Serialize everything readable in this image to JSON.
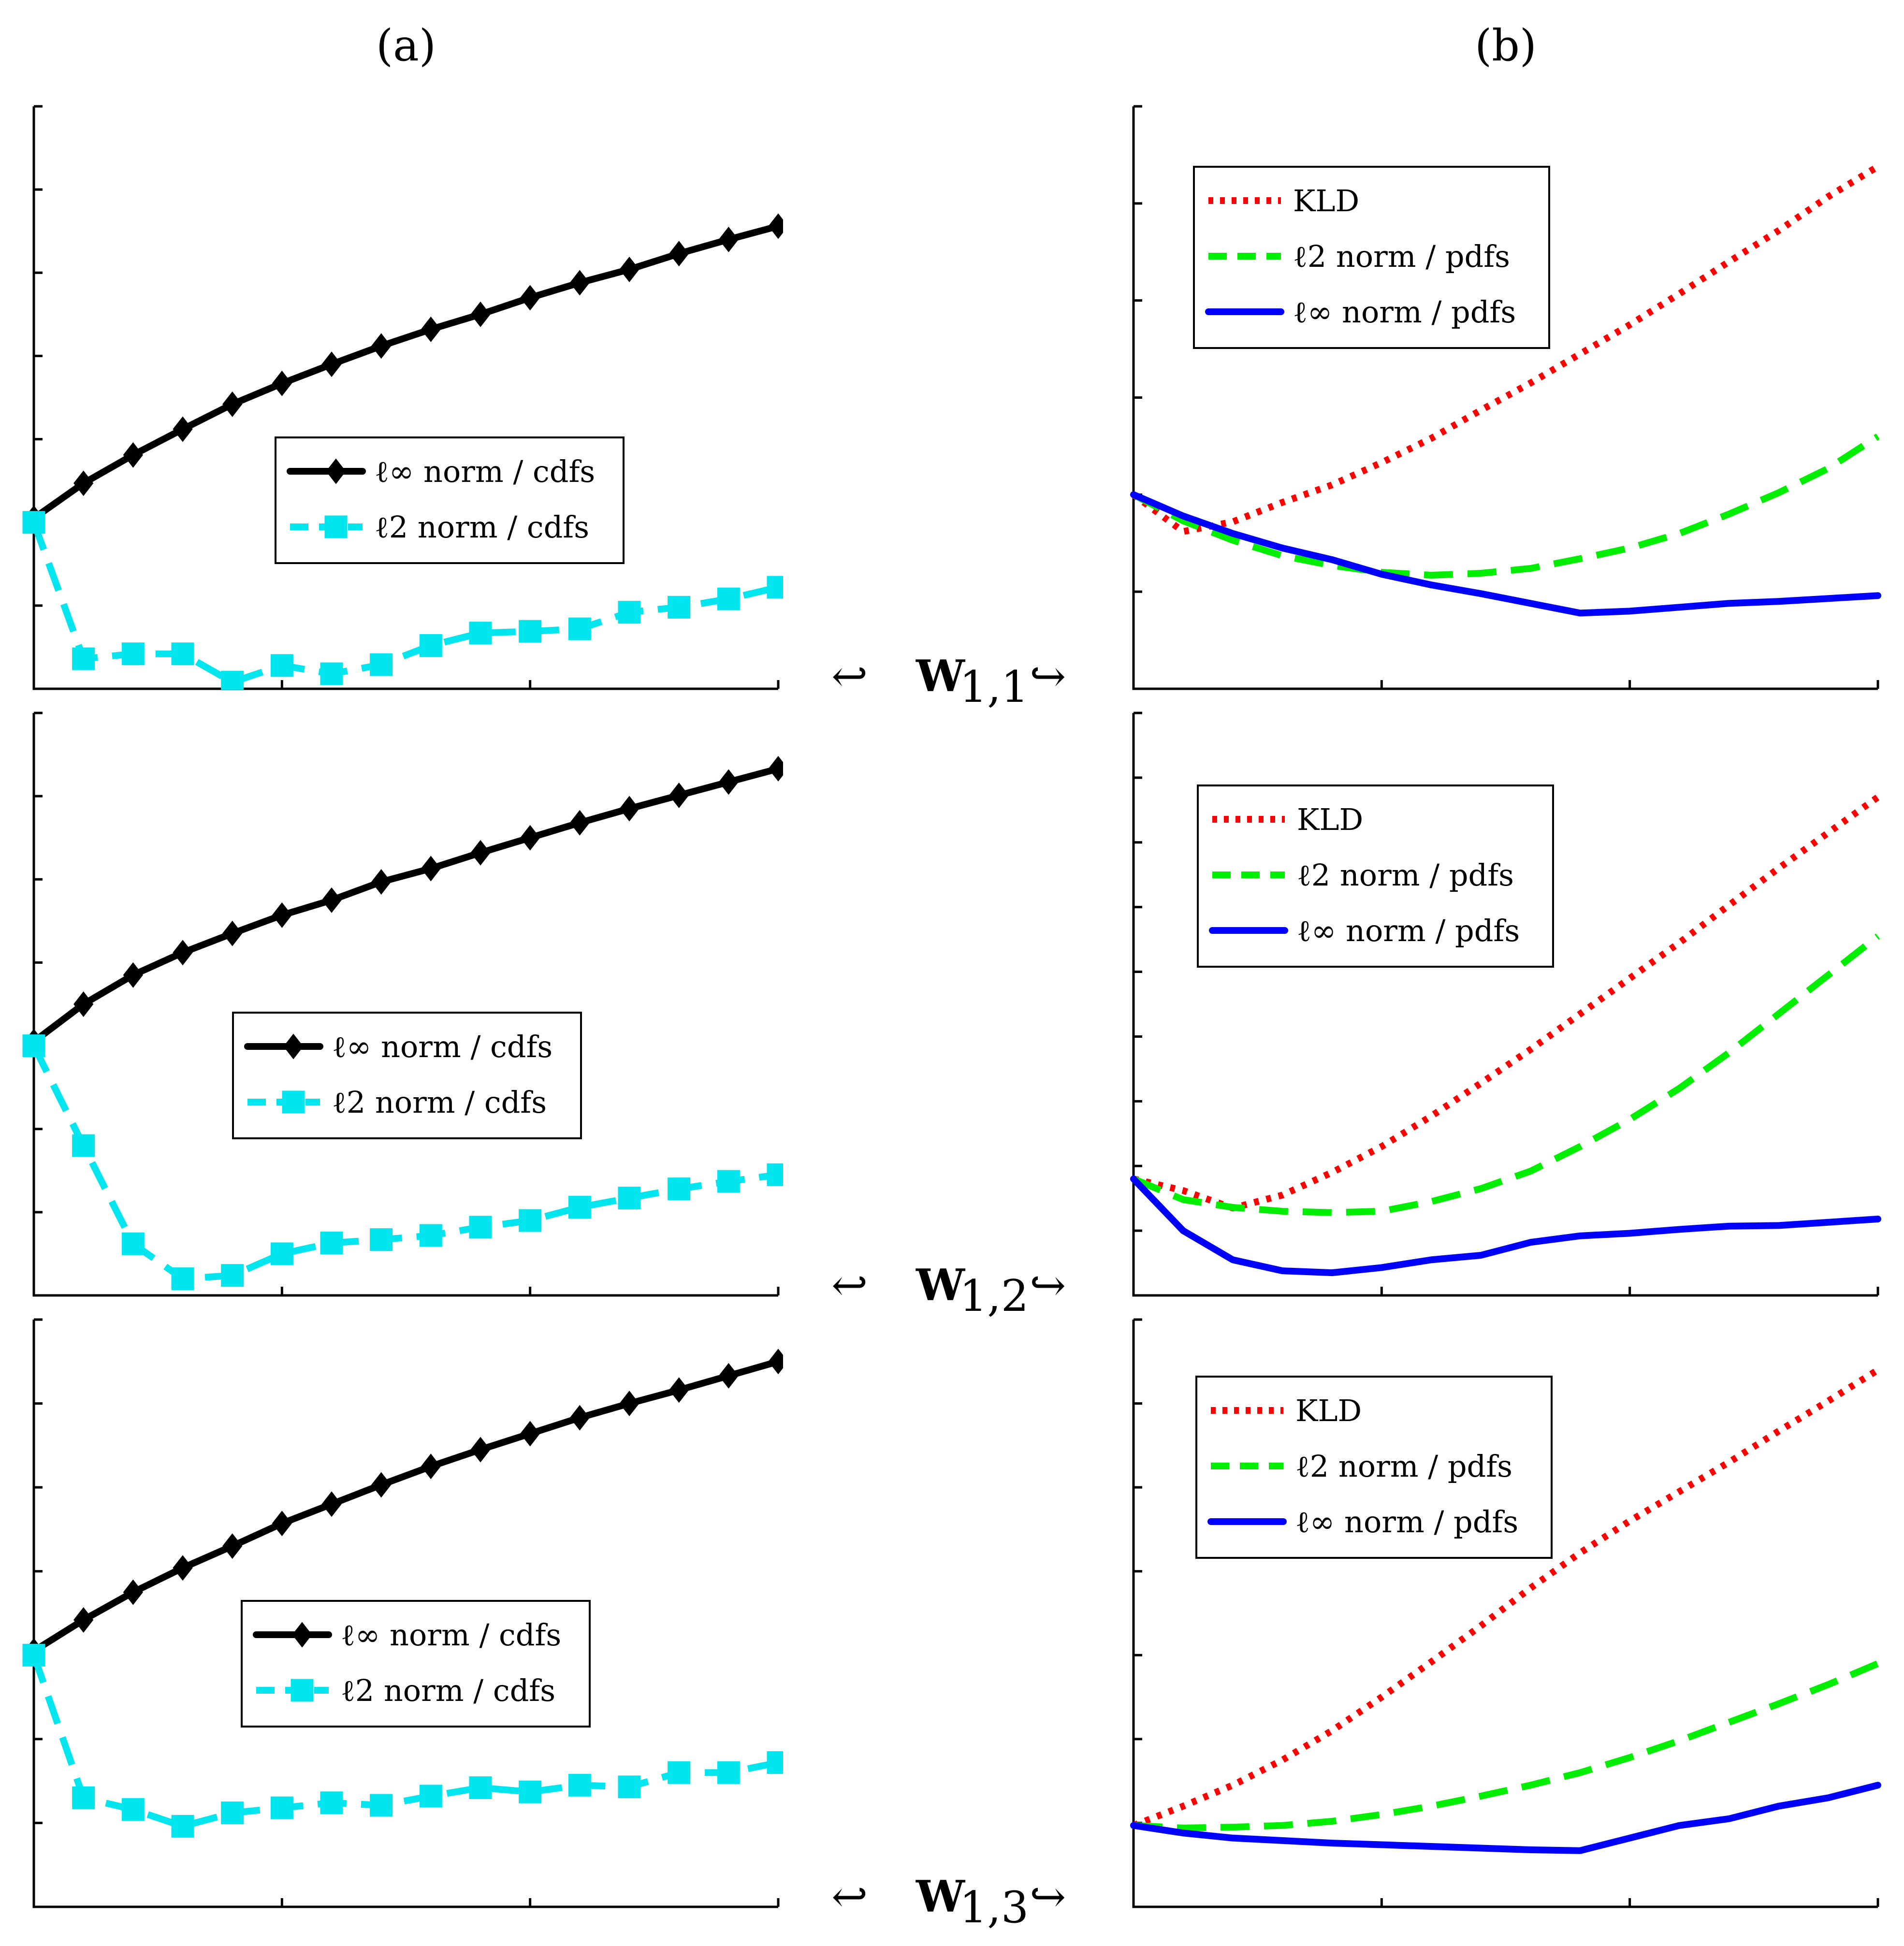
{
  "panel_labels": {
    "a": "(a)",
    "b": "(b)"
  },
  "row_labels": [
    {
      "left_arrow": "↩",
      "main": "W",
      "sub": "1,1",
      "right_arrow": "↪"
    },
    {
      "left_arrow": "↩",
      "main": "W",
      "sub": "1,2",
      "right_arrow": "↪"
    },
    {
      "left_arrow": "↩",
      "main": "W",
      "sub": "1,3",
      "right_arrow": "↪"
    }
  ],
  "colors": {
    "linf_cdf": "#000000",
    "l2_cdf": "#00e5ee",
    "kld": "#ff0000",
    "l2_pdf": "#00ee00",
    "linf_pdf": "#0000ff"
  },
  "chart_data": [
    {
      "id": "a1",
      "type": "line",
      "column": "a",
      "row": 0,
      "xlim": [
        0,
        15
      ],
      "ylim": [
        0,
        7
      ],
      "x_ticks": [
        0,
        5,
        10,
        15
      ],
      "y_ticks": [
        0,
        1,
        2,
        3,
        4,
        5,
        6,
        7
      ],
      "legend_position": "center",
      "series": [
        {
          "name": "ℓ∞ norm / cdfs",
          "style": "solid-diamond",
          "color_key": "linf_cdf",
          "x": [
            0,
            1,
            2,
            3,
            4,
            5,
            6,
            7,
            8,
            9,
            10,
            11,
            12,
            13,
            14,
            15
          ],
          "y": [
            2.05,
            2.47,
            2.81,
            3.12,
            3.42,
            3.67,
            3.9,
            4.12,
            4.32,
            4.5,
            4.7,
            4.88,
            5.04,
            5.23,
            5.4,
            5.56
          ]
        },
        {
          "name": "ℓ2 norm / cdfs",
          "style": "dashed-square",
          "color_key": "l2_cdf",
          "x": [
            0,
            1,
            2,
            3,
            4,
            5,
            6,
            7,
            8,
            9,
            10,
            11,
            12,
            13,
            14,
            15
          ],
          "y": [
            2.0,
            0.36,
            0.42,
            0.42,
            0.08,
            0.28,
            0.18,
            0.29,
            0.52,
            0.67,
            0.69,
            0.72,
            0.92,
            0.98,
            1.08,
            1.22
          ]
        }
      ]
    },
    {
      "id": "b1",
      "type": "line",
      "column": "b",
      "row": 0,
      "xlim": [
        0,
        3
      ],
      "ylim": [
        0,
        6
      ],
      "x_ticks": [
        0,
        1,
        2,
        3
      ],
      "y_ticks": [
        0,
        1,
        2,
        3,
        4,
        5,
        6
      ],
      "legend_position": "top-left",
      "series": [
        {
          "name": "KLD",
          "style": "dotted",
          "color_key": "kld",
          "x": [
            0,
            0.2,
            0.4,
            0.6,
            0.8,
            1.0,
            1.2,
            1.4,
            1.6,
            1.8,
            2.0,
            2.2,
            2.4,
            2.6,
            2.8,
            3.0
          ],
          "y": [
            2.0,
            1.62,
            1.72,
            1.92,
            2.1,
            2.33,
            2.58,
            2.87,
            3.15,
            3.45,
            3.75,
            4.07,
            4.4,
            4.72,
            5.07,
            5.38
          ]
        },
        {
          "name": "ℓ2 norm / pdfs",
          "style": "dashed",
          "color_key": "l2_pdf",
          "x": [
            0,
            0.2,
            0.4,
            0.6,
            0.8,
            1.0,
            1.2,
            1.4,
            1.6,
            1.8,
            2.0,
            2.2,
            2.4,
            2.6,
            2.8,
            3.0
          ],
          "y": [
            2.0,
            1.73,
            1.53,
            1.37,
            1.27,
            1.2,
            1.17,
            1.19,
            1.24,
            1.34,
            1.45,
            1.6,
            1.8,
            2.02,
            2.27,
            2.6
          ]
        },
        {
          "name": "ℓ∞ norm / pdfs",
          "style": "solid",
          "color_key": "linf_pdf",
          "x": [
            0,
            0.2,
            0.4,
            0.6,
            0.8,
            1.0,
            1.2,
            1.4,
            1.6,
            1.8,
            2.0,
            2.2,
            2.4,
            2.6,
            2.8,
            3.0
          ],
          "y": [
            2.0,
            1.78,
            1.6,
            1.45,
            1.33,
            1.18,
            1.07,
            0.98,
            0.88,
            0.78,
            0.8,
            0.84,
            0.88,
            0.9,
            0.93,
            0.96
          ]
        }
      ]
    },
    {
      "id": "a2",
      "type": "line",
      "column": "a",
      "row": 1,
      "xlim": [
        0,
        15
      ],
      "ylim": [
        0,
        7
      ],
      "x_ticks": [
        0,
        5,
        10,
        15
      ],
      "y_ticks": [
        0,
        1,
        2,
        3,
        4,
        5,
        6,
        7
      ],
      "legend_position": "center",
      "series": [
        {
          "name": "ℓ∞ norm / cdfs",
          "style": "solid-diamond",
          "color_key": "linf_cdf",
          "x": [
            0,
            1,
            2,
            3,
            4,
            5,
            6,
            7,
            8,
            9,
            10,
            11,
            12,
            13,
            14,
            15
          ],
          "y": [
            3.05,
            3.5,
            3.85,
            4.12,
            4.35,
            4.57,
            4.75,
            4.97,
            5.13,
            5.32,
            5.5,
            5.68,
            5.85,
            6.01,
            6.17,
            6.33
          ]
        },
        {
          "name": "ℓ2 norm / cdfs",
          "style": "dashed-square",
          "color_key": "l2_cdf",
          "x": [
            0,
            1,
            2,
            3,
            4,
            5,
            6,
            7,
            8,
            9,
            10,
            11,
            12,
            13,
            14,
            15
          ],
          "y": [
            3.0,
            1.8,
            0.62,
            0.2,
            0.24,
            0.5,
            0.63,
            0.67,
            0.72,
            0.82,
            0.9,
            1.06,
            1.17,
            1.28,
            1.37,
            1.45
          ]
        }
      ]
    },
    {
      "id": "b2",
      "type": "line",
      "column": "b",
      "row": 1,
      "xlim": [
        0,
        3
      ],
      "ylim": [
        0,
        9
      ],
      "x_ticks": [
        0,
        1,
        2,
        3
      ],
      "y_ticks": [
        0,
        1,
        2,
        3,
        4,
        5,
        6,
        7,
        8,
        9
      ],
      "legend_position": "top-left",
      "series": [
        {
          "name": "KLD",
          "style": "dotted",
          "color_key": "kld",
          "x": [
            0,
            0.2,
            0.4,
            0.6,
            0.8,
            1.0,
            1.2,
            1.4,
            1.6,
            1.8,
            2.0,
            2.2,
            2.4,
            2.6,
            2.8,
            3.0
          ],
          "y": [
            1.8,
            1.62,
            1.35,
            1.55,
            1.9,
            2.3,
            2.77,
            3.28,
            3.8,
            4.35,
            4.9,
            5.45,
            6.03,
            6.6,
            7.15,
            7.7
          ]
        },
        {
          "name": "ℓ2 norm / pdfs",
          "style": "dashed",
          "color_key": "l2_pdf",
          "x": [
            0,
            0.2,
            0.4,
            0.6,
            0.8,
            1.0,
            1.2,
            1.4,
            1.6,
            1.8,
            2.0,
            2.2,
            2.4,
            2.6,
            2.8,
            3.0
          ],
          "y": [
            1.8,
            1.48,
            1.36,
            1.3,
            1.28,
            1.3,
            1.45,
            1.65,
            1.92,
            2.3,
            2.72,
            3.2,
            3.75,
            4.35,
            4.95,
            5.55
          ]
        },
        {
          "name": "ℓ∞ norm / pdfs",
          "style": "solid",
          "color_key": "linf_pdf",
          "x": [
            0,
            0.2,
            0.4,
            0.6,
            0.8,
            1.0,
            1.2,
            1.4,
            1.6,
            1.8,
            2.0,
            2.2,
            2.4,
            2.6,
            2.8,
            3.0
          ],
          "y": [
            1.8,
            1.0,
            0.55,
            0.38,
            0.35,
            0.43,
            0.55,
            0.62,
            0.82,
            0.92,
            0.96,
            1.02,
            1.07,
            1.08,
            1.13,
            1.18
          ]
        }
      ]
    },
    {
      "id": "a3",
      "type": "line",
      "column": "a",
      "row": 2,
      "xlim": [
        0,
        15
      ],
      "ylim": [
        0,
        7
      ],
      "x_ticks": [
        0,
        5,
        10,
        15
      ],
      "y_ticks": [
        0,
        1,
        2,
        3,
        4,
        5,
        6,
        7
      ],
      "legend_position": "center",
      "series": [
        {
          "name": "ℓ∞ norm / cdfs",
          "style": "solid-diamond",
          "color_key": "linf_cdf",
          "x": [
            0,
            1,
            2,
            3,
            4,
            5,
            6,
            7,
            8,
            9,
            10,
            11,
            12,
            13,
            14,
            15
          ],
          "y": [
            3.05,
            3.42,
            3.75,
            4.04,
            4.3,
            4.57,
            4.8,
            5.03,
            5.25,
            5.45,
            5.64,
            5.83,
            6.0,
            6.16,
            6.33,
            6.5
          ]
        },
        {
          "name": "ℓ2 norm / cdfs",
          "style": "dashed-square",
          "color_key": "l2_cdf",
          "x": [
            0,
            1,
            2,
            3,
            4,
            5,
            6,
            7,
            8,
            9,
            10,
            11,
            12,
            13,
            14,
            15
          ],
          "y": [
            3.0,
            1.3,
            1.16,
            0.96,
            1.12,
            1.18,
            1.24,
            1.21,
            1.32,
            1.42,
            1.37,
            1.45,
            1.43,
            1.6,
            1.6,
            1.72
          ]
        }
      ]
    },
    {
      "id": "b3",
      "type": "line",
      "column": "b",
      "row": 2,
      "xlim": [
        0,
        3
      ],
      "ylim": [
        0,
        7
      ],
      "x_ticks": [
        0,
        1,
        2,
        3
      ],
      "y_ticks": [
        0,
        1,
        2,
        3,
        4,
        5,
        6,
        7
      ],
      "legend_position": "top-left",
      "series": [
        {
          "name": "KLD",
          "style": "dotted",
          "color_key": "kld",
          "x": [
            0,
            0.2,
            0.4,
            0.6,
            0.8,
            1.0,
            1.2,
            1.4,
            1.6,
            1.8,
            2.0,
            2.2,
            2.4,
            2.6,
            2.8,
            3.0
          ],
          "y": [
            0.97,
            1.2,
            1.45,
            1.75,
            2.1,
            2.5,
            2.92,
            3.35,
            3.8,
            4.22,
            4.6,
            4.95,
            5.3,
            5.67,
            6.03,
            6.4
          ]
        },
        {
          "name": "ℓ2 norm / pdfs",
          "style": "dashed",
          "color_key": "l2_pdf",
          "x": [
            0,
            0.2,
            0.4,
            0.6,
            0.8,
            1.0,
            1.2,
            1.4,
            1.6,
            1.8,
            2.0,
            2.2,
            2.4,
            2.6,
            2.8,
            3.0
          ],
          "y": [
            0.97,
            0.94,
            0.95,
            0.97,
            1.02,
            1.1,
            1.2,
            1.32,
            1.45,
            1.6,
            1.78,
            1.98,
            2.2,
            2.42,
            2.65,
            2.9
          ]
        },
        {
          "name": "ℓ∞ norm / pdfs",
          "style": "solid",
          "color_key": "linf_pdf",
          "x": [
            0,
            0.2,
            0.4,
            0.6,
            0.8,
            1.0,
            1.2,
            1.4,
            1.6,
            1.8,
            2.0,
            2.2,
            2.4,
            2.6,
            2.8,
            3.0
          ],
          "y": [
            0.97,
            0.88,
            0.82,
            0.79,
            0.76,
            0.74,
            0.72,
            0.7,
            0.68,
            0.67,
            0.82,
            0.97,
            1.05,
            1.2,
            1.3,
            1.45
          ]
        }
      ]
    }
  ]
}
